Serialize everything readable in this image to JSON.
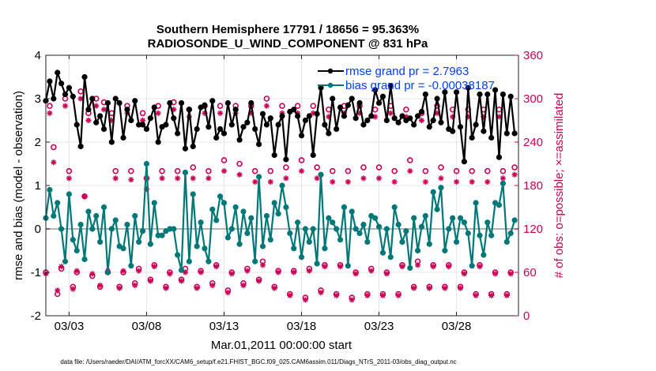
{
  "chart_data": {
    "type": "line",
    "title_line1": "Southern Hemisphere 17791 / 18656 = 95.363%",
    "title_line2": "RADIOSONDE_U_WIND_COMPONENT @ 831 hPa",
    "xlabel": "Mar.01,2011 00:00:00 start",
    "ylabel_left": "rmse and bias (model - observation)",
    "ylabel_right": "# of obs: o=possible; ×=assimilated",
    "footnote": "data file: /Users/raeder/DAI/ATM_forcXX/CAM6_setup/f.e21.FHIST_BGC.f09_025.CAM6assim.011/Diags_NTrS_2011-03/obs_diag_output.nc",
    "x_range": [
      1.5,
      32.0
    ],
    "x_tick_positions": [
      3,
      8,
      13,
      18,
      23,
      28
    ],
    "x_tick_labels": [
      "03/03",
      "03/08",
      "03/13",
      "03/18",
      "03/23",
      "03/28"
    ],
    "ylim_left": [
      -2,
      4
    ],
    "y_ticks_left": [
      "-2",
      "-1",
      "0",
      "1",
      "2",
      "3",
      "4"
    ],
    "ylim_right": [
      0,
      360
    ],
    "y_ticks_right": [
      "0",
      "60",
      "120",
      "180",
      "240",
      "300",
      "360"
    ],
    "colors": {
      "rmse": "#000000",
      "bias": "#007878",
      "obs": "#cc0055",
      "zero_line": "#b4b4b4",
      "legend_text": "#0040ff",
      "grid": "#e5e5e5"
    },
    "series": [
      {
        "name": "rmse grand pr = 2.7963",
        "axis": "left",
        "style": "line-marker",
        "color": "#000000",
        "x": [
          1.5,
          1.75,
          2.0,
          2.25,
          2.5,
          2.75,
          3.0,
          3.25,
          3.5,
          3.75,
          4.0,
          4.25,
          4.5,
          4.75,
          5.0,
          5.25,
          5.5,
          5.75,
          6.0,
          6.25,
          6.5,
          6.75,
          7.0,
          7.25,
          7.5,
          7.75,
          8.0,
          8.25,
          8.5,
          8.75,
          9.0,
          9.25,
          9.5,
          9.75,
          10.0,
          10.25,
          10.5,
          10.75,
          11.0,
          11.25,
          11.5,
          11.75,
          12.0,
          12.25,
          12.5,
          12.75,
          13.0,
          13.25,
          13.5,
          13.75,
          14.0,
          14.25,
          14.5,
          14.75,
          15.0,
          15.25,
          15.5,
          15.75,
          16.0,
          16.25,
          16.5,
          16.75,
          17.0,
          17.25,
          17.5,
          17.75,
          18.0,
          18.25,
          18.5,
          18.75,
          19.0,
          19.25,
          19.5,
          19.75,
          20.0,
          20.25,
          20.5,
          20.75,
          21.0,
          21.25,
          21.5,
          21.75,
          22.0,
          22.25,
          22.5,
          22.75,
          23.0,
          23.25,
          23.5,
          23.75,
          24.0,
          24.25,
          24.5,
          24.75,
          25.0,
          25.25,
          25.5,
          25.75,
          26.0,
          26.25,
          26.5,
          26.75,
          27.0,
          27.25,
          27.5,
          27.75,
          28.0,
          28.25,
          28.5,
          28.75,
          29.0,
          29.25,
          29.5,
          29.75,
          30.0,
          30.25,
          30.5,
          30.75,
          31.0,
          31.25,
          31.5,
          31.75
        ],
        "values": [
          2.95,
          3.4,
          3.0,
          3.6,
          3.35,
          3.1,
          3.25,
          3.05,
          2.4,
          1.9,
          3.5,
          2.75,
          3.0,
          2.45,
          2.6,
          2.3,
          2.9,
          2.0,
          3.0,
          2.9,
          2.1,
          2.75,
          2.5,
          2.95,
          2.4,
          2.4,
          2.3,
          2.55,
          2.8,
          2.0,
          2.35,
          2.4,
          2.9,
          2.55,
          2.2,
          2.9,
          1.85,
          2.75,
          1.9,
          2.3,
          2.8,
          2.85,
          2.35,
          2.95,
          2.1,
          2.3,
          2.2,
          2.9,
          2.4,
          2.75,
          2.05,
          2.35,
          2.45,
          2.9,
          2.3,
          1.95,
          2.65,
          2.4,
          2.55,
          1.7,
          2.4,
          2.6,
          1.6,
          2.7,
          2.75,
          2.6,
          2.15,
          2.5,
          2.6,
          1.7,
          2.65,
          3.25,
          2.4,
          2.2,
          3.0,
          2.3,
          2.8,
          2.6,
          2.85,
          3.0,
          2.55,
          2.9,
          2.4,
          2.5,
          2.6,
          3.2,
          2.9,
          3.05,
          2.5,
          3.3,
          2.55,
          2.45,
          2.6,
          2.5,
          2.55,
          2.4,
          2.6,
          2.7,
          3.1,
          2.35,
          2.5,
          3.0,
          2.45,
          3.15,
          2.3,
          2.25,
          3.15,
          2.35,
          1.55,
          3.25,
          2.1,
          2.4,
          3.1,
          2.25,
          3.1,
          2.1,
          3.2,
          1.65,
          3.1,
          2.2,
          3.05,
          2.2
        ]
      },
      {
        "name": "bias grand pr = -0.00038187",
        "axis": "left",
        "style": "line-marker",
        "color": "#007878",
        "x": [
          1.5,
          1.75,
          2.0,
          2.25,
          2.5,
          2.75,
          3.0,
          3.25,
          3.5,
          3.75,
          4.0,
          4.25,
          4.5,
          4.75,
          5.0,
          5.25,
          5.5,
          5.75,
          6.0,
          6.25,
          6.5,
          6.75,
          7.0,
          7.25,
          7.5,
          7.75,
          8.0,
          8.25,
          8.5,
          8.75,
          9.0,
          9.25,
          9.5,
          9.75,
          10.0,
          10.25,
          10.5,
          10.75,
          11.0,
          11.25,
          11.5,
          11.75,
          12.0,
          12.25,
          12.5,
          12.75,
          13.0,
          13.25,
          13.5,
          13.75,
          14.0,
          14.25,
          14.5,
          14.75,
          15.0,
          15.25,
          15.5,
          15.75,
          16.0,
          16.25,
          16.5,
          16.75,
          17.0,
          17.25,
          17.5,
          17.75,
          18.0,
          18.25,
          18.5,
          18.75,
          19.0,
          19.25,
          19.5,
          19.75,
          20.0,
          20.25,
          20.5,
          20.75,
          21.0,
          21.25,
          21.5,
          21.75,
          22.0,
          22.25,
          22.5,
          22.75,
          23.0,
          23.25,
          23.5,
          23.75,
          24.0,
          24.25,
          24.5,
          24.75,
          25.0,
          25.25,
          25.5,
          25.75,
          26.0,
          26.25,
          26.5,
          26.75,
          27.0,
          27.25,
          27.5,
          27.75,
          28.0,
          28.25,
          28.5,
          28.75,
          29.0,
          29.25,
          29.5,
          29.75,
          30.0,
          30.25,
          30.5,
          30.75,
          31.0,
          31.25,
          31.5,
          31.75
        ],
        "values": [
          0.25,
          0.9,
          0.3,
          0.6,
          0.0,
          -0.75,
          0.8,
          -0.25,
          -0.5,
          0.1,
          -0.7,
          0.4,
          0.0,
          0.3,
          -0.3,
          0.5,
          -1.0,
          0.0,
          0.2,
          -0.4,
          -0.45,
          0.1,
          -0.85,
          0.3,
          -0.3,
          -0.05,
          1.5,
          -0.35,
          0.6,
          -0.15,
          -0.15,
          -0.05,
          0.0,
          0.0,
          -0.6,
          -0.95,
          1.3,
          -0.75,
          0.8,
          -0.4,
          0.15,
          -0.45,
          -0.75,
          0.45,
          0.2,
          0.75,
          0.6,
          -0.2,
          0.0,
          0.5,
          -0.35,
          0.4,
          -0.1,
          0.25,
          -0.75,
          1.2,
          -0.4,
          0.3,
          -0.25,
          0.6,
          0.35,
          1.0,
          0.5,
          -0.1,
          -0.45,
          0.15,
          -0.65,
          0.0,
          -0.3,
          0.0,
          -0.8,
          1.25,
          -0.45,
          0.25,
          0.15,
          0.0,
          -0.25,
          0.5,
          -0.85,
          0.4,
          0.0,
          -0.1,
          0.1,
          -0.3,
          0.3,
          0.25,
          0.05,
          -0.55,
          0.0,
          -0.65,
          0.5,
          0.1,
          -0.3,
          -0.05,
          -0.9,
          0.25,
          -0.5,
          0.05,
          0.3,
          -0.35,
          0.85,
          0.45,
          0.95,
          -0.5,
          0.0,
          0.25,
          -0.3,
          0.25,
          0.15,
          -0.1,
          -0.85,
          0.6,
          -0.15,
          -0.6,
          0.15,
          -0.15,
          0.6,
          0.55,
          1.05,
          -0.3,
          -0.1,
          0.2
        ]
      },
      {
        "name": "obs possible",
        "axis": "right",
        "style": "marker-circle",
        "color": "#cc0055",
        "x": [
          1.5,
          1.75,
          2.0,
          2.25,
          2.5,
          2.75,
          3.0,
          3.25,
          3.5,
          3.75,
          4.0,
          4.25,
          4.5,
          4.75,
          5.0,
          5.25,
          5.5,
          5.75,
          6.0,
          6.25,
          6.5,
          6.75,
          7.0,
          7.25,
          7.5,
          7.75,
          8.0,
          8.25,
          8.5,
          8.75,
          9.0,
          9.25,
          9.5,
          9.75,
          10.0,
          10.25,
          10.5,
          10.75,
          11.0,
          11.25,
          11.5,
          11.75,
          12.0,
          12.25,
          12.5,
          12.75,
          13.0,
          13.25,
          13.5,
          13.75,
          14.0,
          14.25,
          14.5,
          14.75,
          15.0,
          15.25,
          15.5,
          15.75,
          16.0,
          16.25,
          16.5,
          16.75,
          17.0,
          17.25,
          17.5,
          17.75,
          18.0,
          18.25,
          18.5,
          18.75,
          19.0,
          19.25,
          19.5,
          19.75,
          20.0,
          20.25,
          20.5,
          20.75,
          21.0,
          21.25,
          21.5,
          21.75,
          22.0,
          22.25,
          22.5,
          22.75,
          23.0,
          23.25,
          23.5,
          23.75,
          24.0,
          24.25,
          24.5,
          24.75,
          25.0,
          25.25,
          25.5,
          25.75,
          26.0,
          26.25,
          26.5,
          26.75,
          27.0,
          27.25,
          27.5,
          27.75,
          28.0,
          28.25,
          28.5,
          28.75,
          29.0,
          29.25,
          29.5,
          29.75,
          30.0,
          30.25,
          30.5,
          30.75,
          31.0,
          31.25,
          31.5,
          31.75
        ],
        "values": [
          60,
          290,
          233,
          30,
          65,
          300,
          200,
          40,
          60,
          310,
          165,
          280,
          55,
          300,
          40,
          295,
          60,
          280,
          200,
          40,
          60,
          290,
          200,
          45,
          65,
          280,
          190,
          50,
          70,
          290,
          200,
          40,
          60,
          295,
          200,
          50,
          65,
          285,
          205,
          40,
          62,
          290,
          200,
          45,
          70,
          290,
          215,
          35,
          60,
          290,
          210,
          45,
          65,
          290,
          200,
          50,
          75,
          300,
          200,
          40,
          62,
          290,
          205,
          30,
          62,
          290,
          215,
          25,
          65,
          290,
          205,
          35,
          70,
          285,
          200,
          30,
          70,
          290,
          200,
          25,
          60,
          290,
          205,
          30,
          65,
          285,
          205,
          30,
          60,
          290,
          200,
          30,
          70,
          285,
          215,
          40,
          75,
          280,
          200,
          40,
          70,
          290,
          205,
          40,
          70,
          285,
          200,
          40,
          60,
          285,
          200,
          30,
          70,
          285,
          200,
          30,
          60,
          285,
          200,
          30,
          60,
          205
        ]
      },
      {
        "name": "obs assimilated",
        "axis": "right",
        "style": "marker-asterisk",
        "color": "#cc0055",
        "x": [
          1.5,
          1.75,
          2.0,
          2.25,
          2.5,
          2.75,
          3.0,
          3.25,
          3.5,
          3.75,
          4.0,
          4.25,
          4.5,
          4.75,
          5.0,
          5.25,
          5.5,
          5.75,
          6.0,
          6.25,
          6.5,
          6.75,
          7.0,
          7.25,
          7.5,
          7.75,
          8.0,
          8.25,
          8.5,
          8.75,
          9.0,
          9.25,
          9.5,
          9.75,
          10.0,
          10.25,
          10.5,
          10.75,
          11.0,
          11.25,
          11.5,
          11.75,
          12.0,
          12.25,
          12.5,
          12.75,
          13.0,
          13.25,
          13.5,
          13.75,
          14.0,
          14.25,
          14.5,
          14.75,
          15.0,
          15.25,
          15.5,
          15.75,
          16.0,
          16.25,
          16.5,
          16.75,
          17.0,
          17.25,
          17.5,
          17.75,
          18.0,
          18.25,
          18.5,
          18.75,
          19.0,
          19.25,
          19.5,
          19.75,
          20.0,
          20.25,
          20.5,
          20.75,
          21.0,
          21.25,
          21.5,
          21.75,
          22.0,
          22.25,
          22.5,
          22.75,
          23.0,
          23.25,
          23.5,
          23.75,
          24.0,
          24.25,
          24.5,
          24.75,
          25.0,
          25.25,
          25.5,
          25.75,
          26.0,
          26.25,
          26.5,
          26.75,
          27.0,
          27.25,
          27.5,
          27.75,
          28.0,
          28.25,
          28.5,
          28.75,
          29.0,
          29.25,
          29.5,
          29.75,
          30.0,
          30.25,
          30.5,
          30.75,
          31.0,
          31.25,
          31.5,
          31.75
        ],
        "values": [
          58,
          280,
          212,
          35,
          68,
          290,
          190,
          37,
          62,
          300,
          165,
          270,
          58,
          290,
          42,
          285,
          62,
          270,
          190,
          38,
          62,
          280,
          188,
          42,
          62,
          270,
          175,
          48,
          68,
          280,
          190,
          38,
          58,
          285,
          190,
          48,
          60,
          275,
          190,
          38,
          60,
          280,
          190,
          42,
          68,
          280,
          200,
          32,
          58,
          280,
          195,
          42,
          62,
          280,
          185,
          48,
          70,
          290,
          185,
          38,
          60,
          280,
          190,
          28,
          60,
          280,
          200,
          22,
          62,
          280,
          190,
          32,
          68,
          275,
          185,
          28,
          68,
          280,
          185,
          22,
          58,
          280,
          190,
          28,
          62,
          275,
          190,
          28,
          58,
          280,
          185,
          28,
          68,
          275,
          200,
          38,
          70,
          270,
          185,
          38,
          68,
          280,
          190,
          38,
          68,
          275,
          185,
          38,
          58,
          275,
          185,
          28,
          68,
          275,
          185,
          28,
          58,
          275,
          190,
          28,
          58,
          195
        ]
      }
    ],
    "zero_line": 0,
    "legend_position": "top-right"
  }
}
